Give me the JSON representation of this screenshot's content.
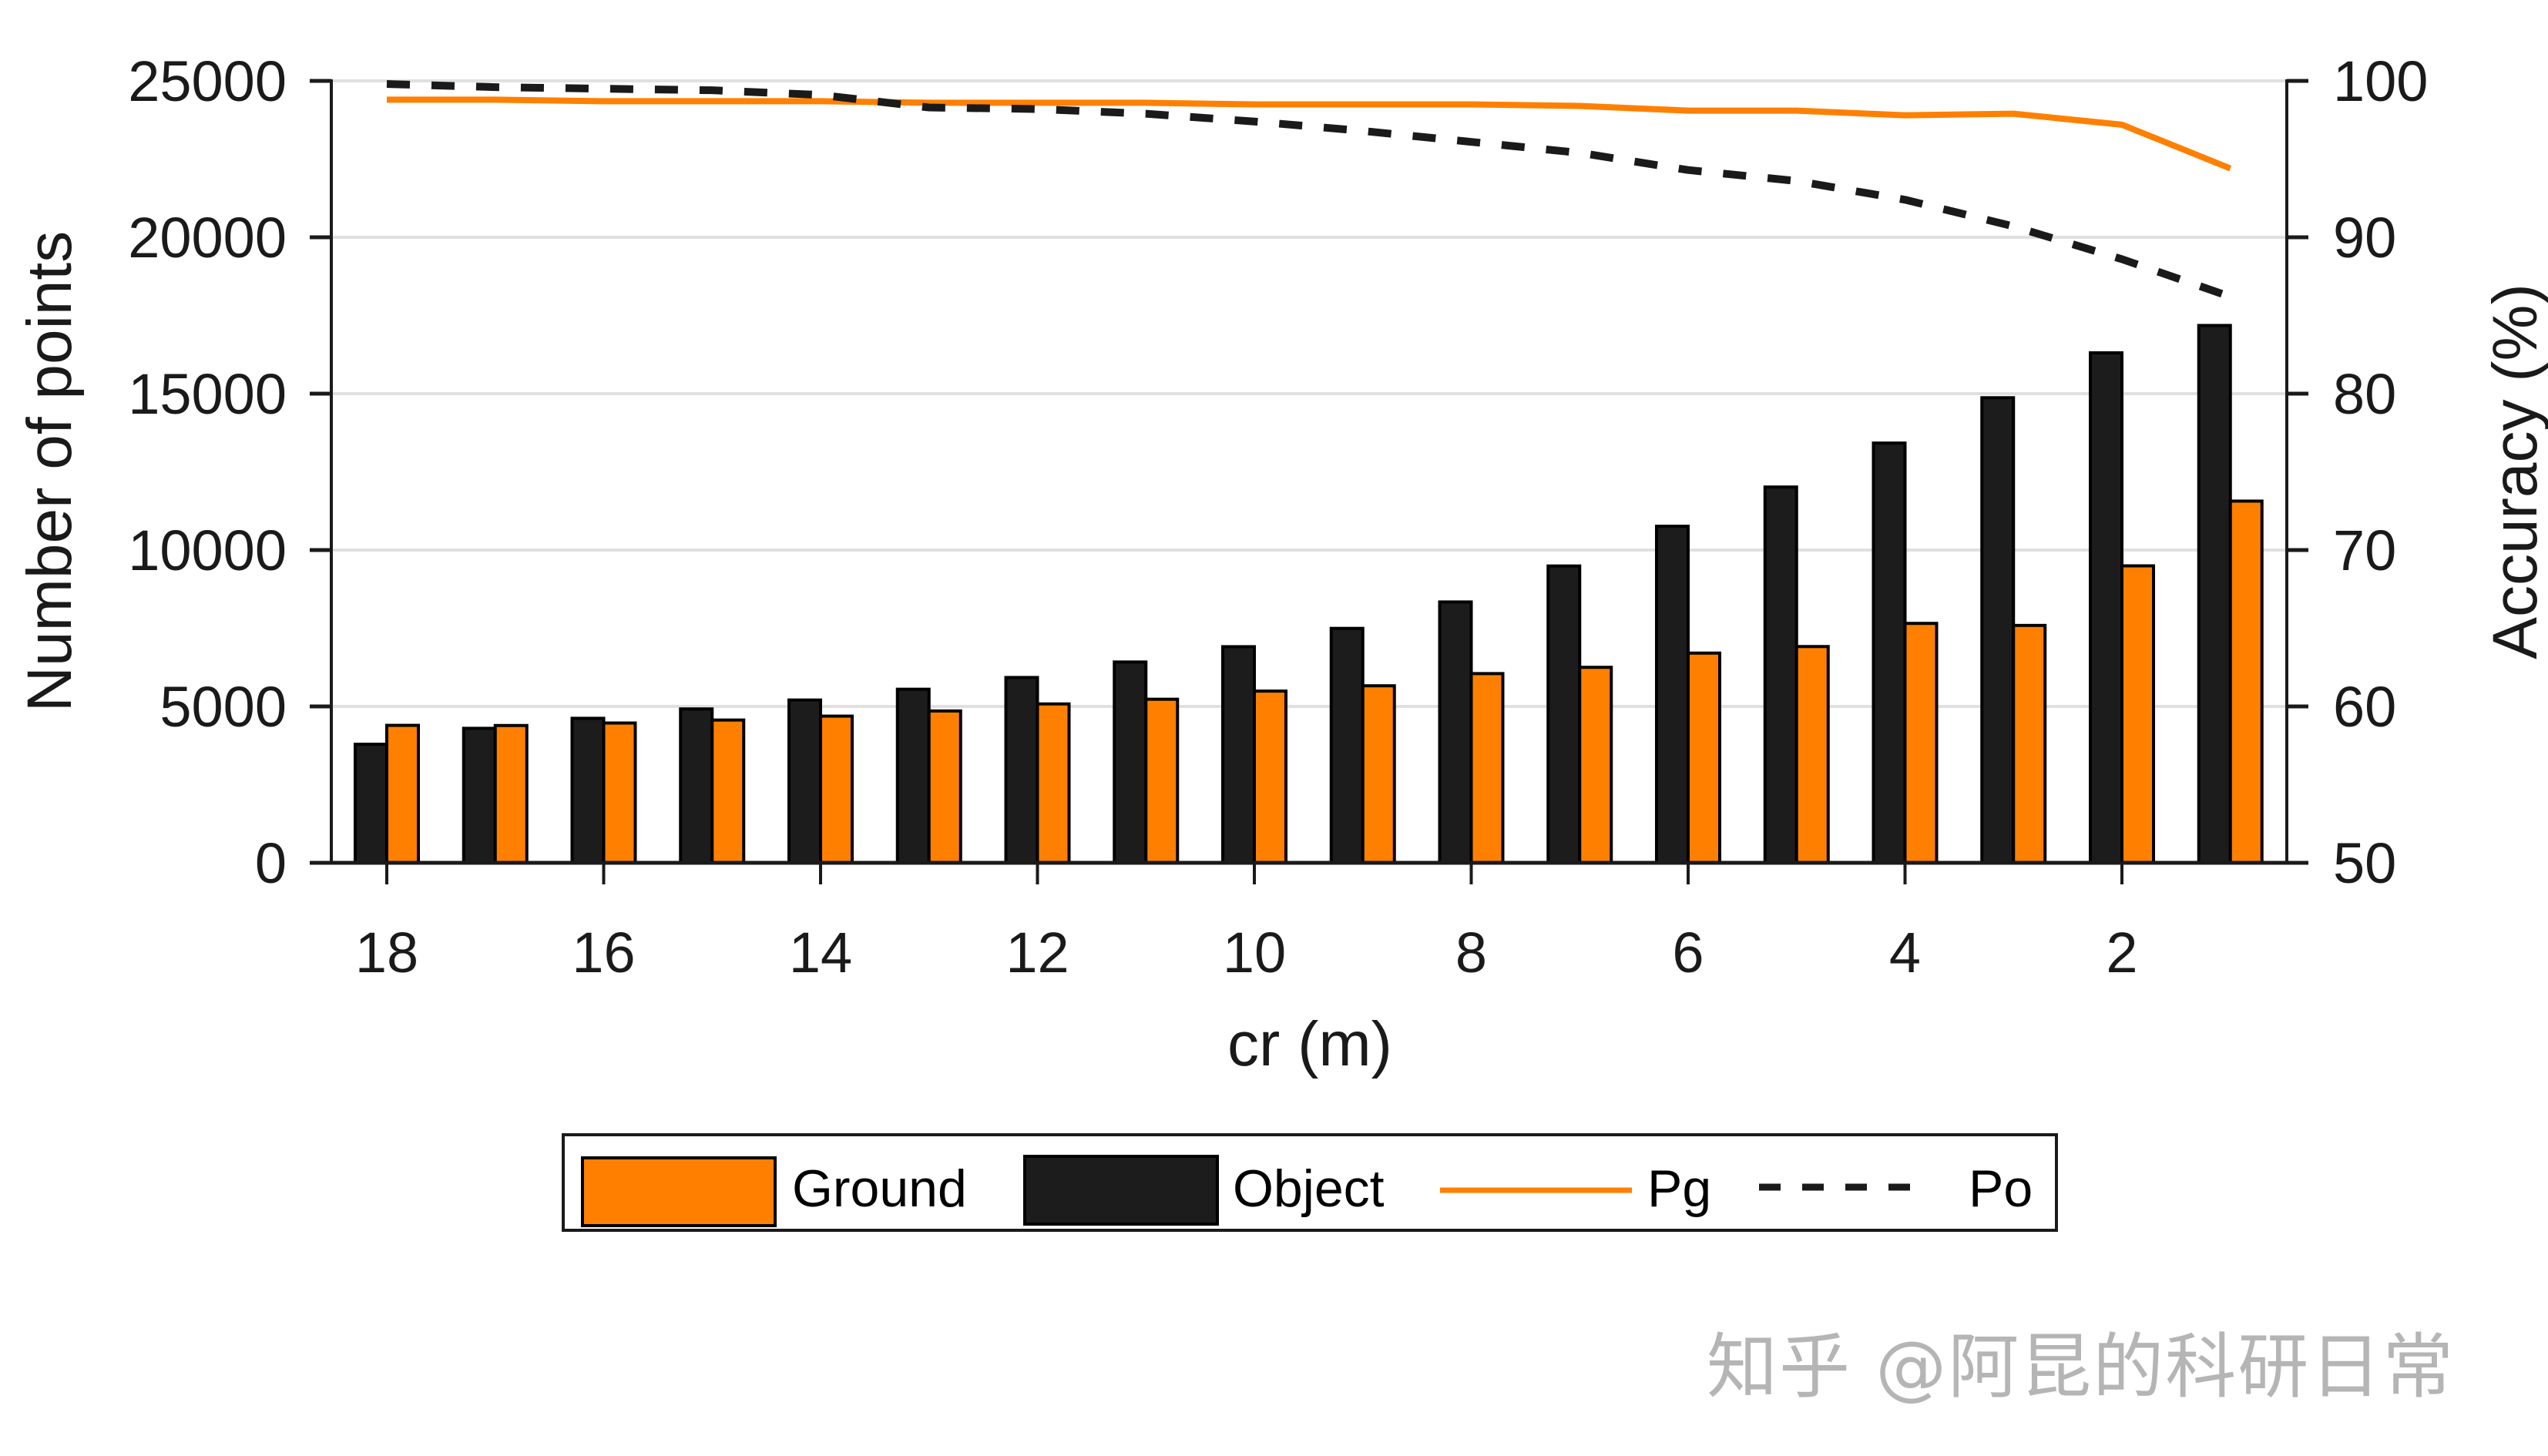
{
  "chart_data": {
    "type": "bar",
    "combo": "bar + line (dual y-axis)",
    "title": "",
    "xlabel": "cr (m)",
    "ylabel": "Number of points",
    "y2label": "Accuracy (%)",
    "x": [
      18,
      17,
      16,
      15,
      14,
      13,
      12,
      11,
      10,
      9,
      8,
      7,
      6,
      5,
      4,
      3,
      2,
      1
    ],
    "x_tick_labels": [
      "18",
      "16",
      "14",
      "12",
      "10",
      "8",
      "6",
      "4",
      "2"
    ],
    "x_tick_values": [
      18,
      16,
      14,
      12,
      10,
      8,
      6,
      4,
      2
    ],
    "ylim": [
      0,
      25000
    ],
    "y_ticks": [
      0,
      5000,
      10000,
      15000,
      20000,
      25000
    ],
    "y2lim": [
      50,
      100
    ],
    "y2_ticks": [
      50,
      60,
      70,
      80,
      90,
      100
    ],
    "grid": true,
    "legend_position": "below plot, horizontal, boxed",
    "series": [
      {
        "name": "Object",
        "type": "bar",
        "axis": "left",
        "color": "#1c1c1c",
        "values": [
          3790,
          4300,
          4620,
          4920,
          5205,
          5550,
          5925,
          6420,
          6910,
          7495,
          8340,
          9490,
          10760,
          12015,
          13420,
          14870,
          16305,
          17180
        ]
      },
      {
        "name": "Ground",
        "type": "bar",
        "axis": "left",
        "color": "#ff8000",
        "values": [
          4395,
          4390,
          4470,
          4565,
          4690,
          4855,
          5080,
          5230,
          5490,
          5660,
          6050,
          6250,
          6705,
          6915,
          7655,
          7590,
          9495,
          11565
        ]
      },
      {
        "name": "Pg",
        "type": "line",
        "style": "solid",
        "axis": "right",
        "color": "#ff8000",
        "values": [
          98.8,
          98.8,
          98.7,
          98.7,
          98.7,
          98.6,
          98.6,
          98.6,
          98.5,
          98.5,
          98.5,
          98.4,
          98.1,
          98.1,
          97.8,
          97.9,
          97.2,
          94.4
        ]
      },
      {
        "name": "Po",
        "type": "line",
        "style": "dashed",
        "axis": "right",
        "color": "#1a1a1a",
        "values": [
          99.8,
          99.6,
          99.5,
          99.4,
          99.1,
          98.3,
          98.2,
          97.9,
          97.4,
          96.8,
          96.1,
          95.4,
          94.3,
          93.6,
          92.4,
          90.7,
          88.6,
          86.2
        ]
      }
    ]
  },
  "axes": {
    "left_ticks": [
      "0",
      "5000",
      "10000",
      "15000",
      "20000",
      "25000"
    ],
    "right_ticks": [
      "50",
      "60",
      "70",
      "80",
      "90",
      "100"
    ],
    "xlabel": "cr (m)",
    "ylabel": "Number of points",
    "y2label": "Accuracy (%)"
  },
  "legend": {
    "items": [
      {
        "label": "Ground",
        "kind": "patch",
        "color": "#ff8000"
      },
      {
        "label": "Object",
        "kind": "patch",
        "color": "#1c1c1c"
      },
      {
        "label": "Pg",
        "kind": "line-solid",
        "color": "#ff8000"
      },
      {
        "label": "Po",
        "kind": "line-dashed",
        "color": "#1a1a1a"
      }
    ]
  },
  "colors": {
    "orange": "#ff8000",
    "black": "#1c1c1c",
    "grid": "#e0e0e0",
    "axis": "#1a1a1a",
    "watermark": "#b5b5b5"
  },
  "watermark": "知乎 @阿昆的科研日常"
}
